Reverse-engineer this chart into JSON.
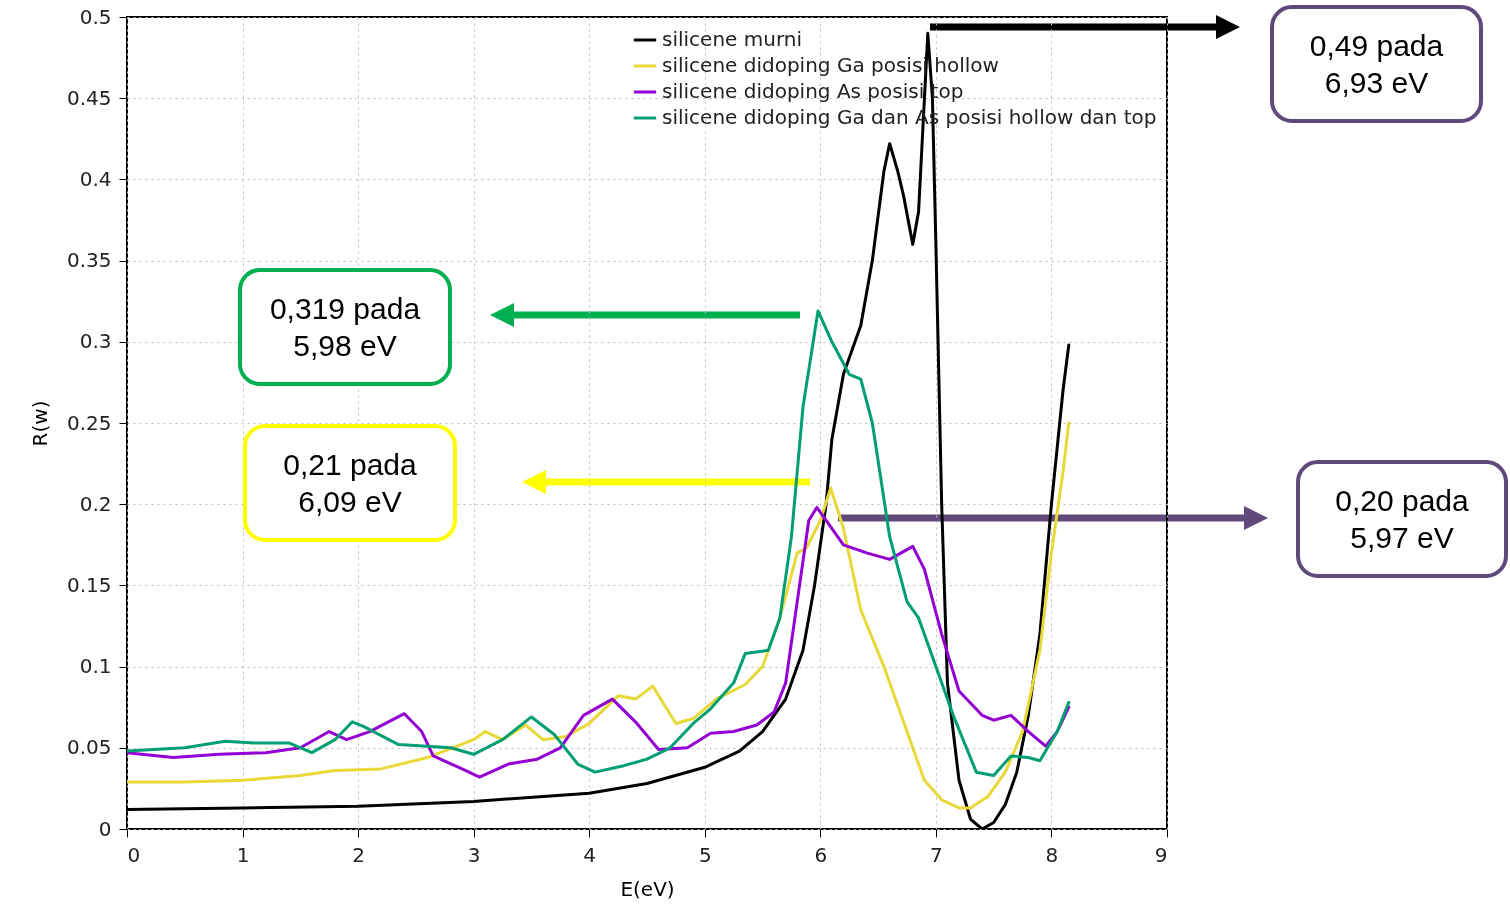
{
  "chart_data": {
    "type": "line",
    "xlabel": "E(eV)",
    "ylabel": "R(w)",
    "xlim": [
      0,
      9
    ],
    "xticks": [
      0,
      1,
      2,
      3,
      4,
      5,
      6,
      7,
      8,
      9
    ],
    "ylim": [
      0,
      0.5
    ],
    "yticks": [
      0,
      0.05,
      0.1,
      0.15,
      0.2,
      0.25,
      0.3,
      0.35,
      0.4,
      0.45,
      0.5
    ],
    "grid": true,
    "legend": "top right",
    "line_style": "solid",
    "series": [
      {
        "name": "silicene murni",
        "color": "#000000",
        "x": [
          0,
          1,
          2,
          3,
          4,
          4.5,
          5,
          5.3,
          5.5,
          5.7,
          5.85,
          5.95,
          6.05,
          6.1,
          6.2,
          6.35,
          6.45,
          6.55,
          6.6,
          6.67,
          6.72,
          6.8,
          6.85,
          6.93,
          6.97,
          7.0,
          7.05,
          7.1,
          7.2,
          7.3,
          7.4,
          7.5,
          7.6,
          7.7,
          7.8,
          7.9,
          8.0,
          8.1,
          8.15
        ],
        "values": [
          0.012,
          0.013,
          0.014,
          0.017,
          0.022,
          0.028,
          0.038,
          0.048,
          0.06,
          0.08,
          0.11,
          0.15,
          0.2,
          0.24,
          0.28,
          0.31,
          0.35,
          0.405,
          0.422,
          0.405,
          0.39,
          0.36,
          0.38,
          0.49,
          0.45,
          0.36,
          0.2,
          0.09,
          0.03,
          0.006,
          0.0,
          0.004,
          0.015,
          0.035,
          0.07,
          0.12,
          0.2,
          0.27,
          0.298
        ]
      },
      {
        "name": "silicene didoping Ga posisi hollow",
        "color": "#e8d838",
        "x": [
          0,
          0.5,
          1,
          1.5,
          1.8,
          2.2,
          2.6,
          3.0,
          3.1,
          3.25,
          3.45,
          3.6,
          3.8,
          4.0,
          4.25,
          4.4,
          4.55,
          4.75,
          4.9,
          5.1,
          5.35,
          5.5,
          5.65,
          5.8,
          5.88,
          6.0,
          6.09,
          6.2,
          6.35,
          6.55,
          6.75,
          6.9,
          7.05,
          7.2,
          7.3,
          7.45,
          7.6,
          7.75,
          7.9,
          8.0,
          8.1,
          8.15
        ],
        "values": [
          0.029,
          0.029,
          0.03,
          0.033,
          0.036,
          0.037,
          0.044,
          0.055,
          0.06,
          0.055,
          0.064,
          0.055,
          0.057,
          0.065,
          0.082,
          0.08,
          0.088,
          0.065,
          0.068,
          0.08,
          0.089,
          0.1,
          0.13,
          0.17,
          0.173,
          0.19,
          0.21,
          0.185,
          0.135,
          0.1,
          0.06,
          0.03,
          0.018,
          0.013,
          0.013,
          0.02,
          0.035,
          0.06,
          0.11,
          0.17,
          0.22,
          0.25
        ]
      },
      {
        "name": "silicene didoping As posisi top",
        "color": "#9400d3",
        "x": [
          0,
          0.4,
          0.8,
          1.2,
          1.5,
          1.75,
          1.9,
          2.1,
          2.4,
          2.55,
          2.65,
          2.9,
          3.05,
          3.3,
          3.55,
          3.75,
          3.95,
          4.2,
          4.4,
          4.6,
          4.85,
          5.05,
          5.25,
          5.45,
          5.6,
          5.7,
          5.8,
          5.9,
          5.97,
          6.05,
          6.2,
          6.4,
          6.6,
          6.8,
          6.9,
          7.05,
          7.2,
          7.4,
          7.5,
          7.65,
          7.8,
          7.95,
          8.05,
          8.15
        ],
        "values": [
          0.047,
          0.044,
          0.046,
          0.047,
          0.05,
          0.06,
          0.055,
          0.06,
          0.071,
          0.06,
          0.045,
          0.037,
          0.032,
          0.04,
          0.043,
          0.05,
          0.07,
          0.08,
          0.066,
          0.049,
          0.05,
          0.059,
          0.06,
          0.064,
          0.072,
          0.09,
          0.14,
          0.19,
          0.198,
          0.19,
          0.175,
          0.17,
          0.166,
          0.174,
          0.16,
          0.12,
          0.085,
          0.07,
          0.067,
          0.07,
          0.06,
          0.051,
          0.06,
          0.075
        ]
      },
      {
        "name": "silicene didoping Ga dan As posisi hollow dan top",
        "color": "#009e73",
        "x": [
          0,
          0.5,
          0.85,
          1.1,
          1.4,
          1.6,
          1.8,
          1.95,
          2.05,
          2.35,
          2.6,
          2.8,
          3.0,
          3.25,
          3.5,
          3.7,
          3.9,
          4.05,
          4.3,
          4.5,
          4.7,
          4.9,
          5.05,
          5.25,
          5.35,
          5.55,
          5.65,
          5.75,
          5.85,
          5.98,
          6.1,
          6.25,
          6.35,
          6.45,
          6.6,
          6.75,
          6.85,
          7.0,
          7.15,
          7.35,
          7.5,
          7.65,
          7.8,
          7.9,
          8.05,
          8.15
        ],
        "values": [
          0.048,
          0.05,
          0.054,
          0.053,
          0.053,
          0.047,
          0.055,
          0.066,
          0.063,
          0.052,
          0.051,
          0.05,
          0.046,
          0.055,
          0.069,
          0.058,
          0.04,
          0.035,
          0.039,
          0.043,
          0.05,
          0.065,
          0.074,
          0.09,
          0.108,
          0.11,
          0.13,
          0.18,
          0.26,
          0.319,
          0.3,
          0.28,
          0.277,
          0.25,
          0.18,
          0.14,
          0.13,
          0.1,
          0.07,
          0.035,
          0.033,
          0.045,
          0.044,
          0.042,
          0.06,
          0.078
        ]
      }
    ],
    "annotations": [
      "0,49 pada\n6,93 eV",
      "0,319 pada\n5,98 eV",
      "0,21 pada\n6,09 eV",
      "0,20 pada\n5,97 eV"
    ]
  }
}
